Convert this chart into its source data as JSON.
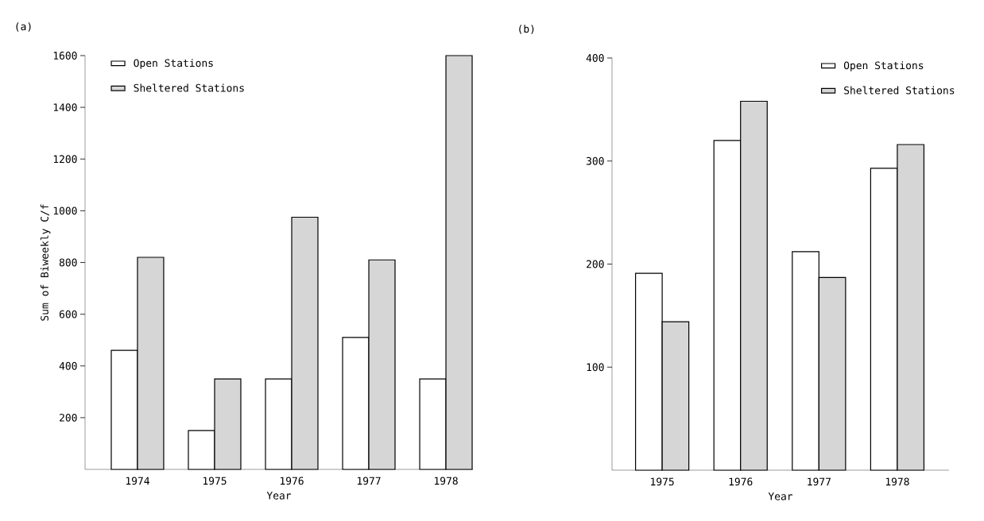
{
  "chart_data": [
    {
      "type": "bar",
      "title": "(a)",
      "xlabel": "Year",
      "ylabel": "Sum of Biweekly C/f",
      "categories": [
        "1974",
        "1975",
        "1976",
        "1977",
        "1978"
      ],
      "series": [
        {
          "name": "Open Stations",
          "color": "#ffffff",
          "values": [
            460,
            150,
            350,
            510,
            350
          ]
        },
        {
          "name": "Sheltered Stations",
          "color": "#d6d6d6",
          "values": [
            820,
            350,
            975,
            810,
            1600
          ]
        }
      ],
      "ylim": [
        0,
        1600
      ],
      "yticks": [
        200,
        400,
        600,
        800,
        1000,
        1200,
        1400,
        1600
      ],
      "legend": "top left"
    },
    {
      "type": "bar",
      "title": "(b)",
      "xlabel": "Year",
      "categories": [
        "1975",
        "1976",
        "1977",
        "1978"
      ],
      "series": [
        {
          "name": "Open Stations",
          "color": "#ffffff",
          "values": [
            191,
            320,
            212,
            293
          ]
        },
        {
          "name": "Sheltered Stations",
          "color": "#d6d6d6",
          "values": [
            144,
            358,
            187,
            316
          ]
        }
      ],
      "ylim": [
        0,
        400
      ],
      "yticks": [
        100,
        200,
        300,
        400
      ],
      "legend": "top right"
    }
  ]
}
